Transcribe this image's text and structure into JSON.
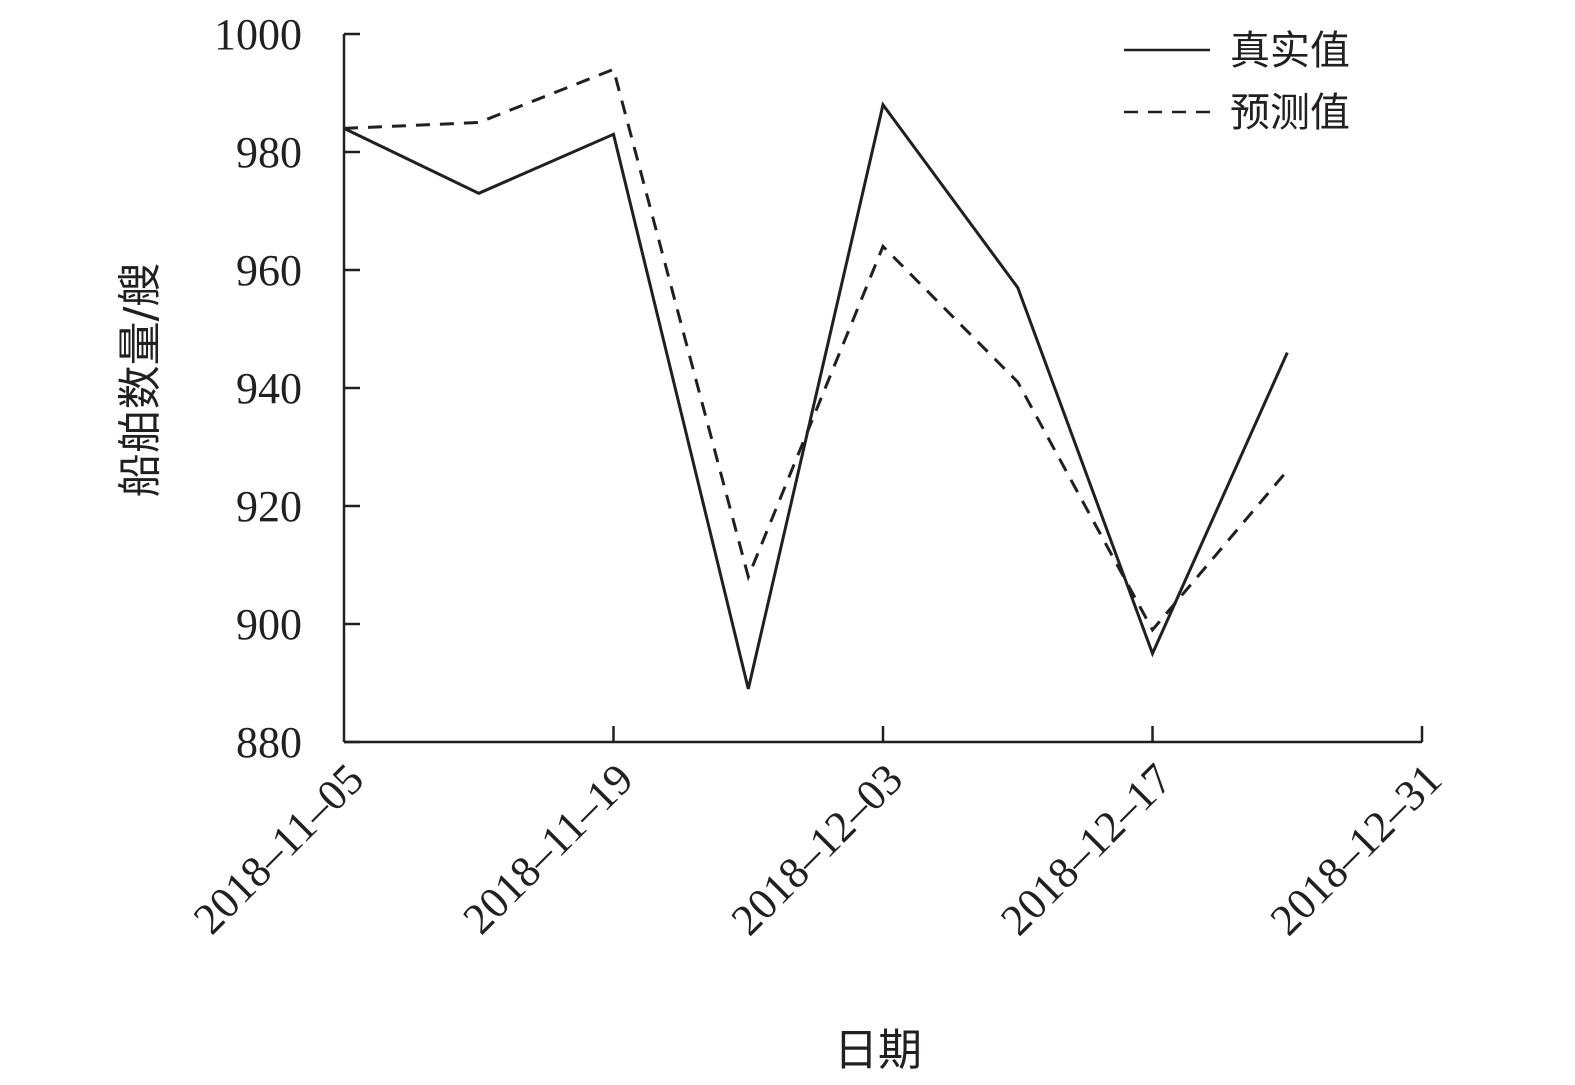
{
  "chart_data": {
    "type": "line",
    "xlabel": "日期",
    "ylabel": "船舶数量/艘",
    "ylim": [
      880,
      1000
    ],
    "yticks": [
      880,
      900,
      920,
      940,
      960,
      980,
      1000
    ],
    "x_tick_labels": [
      "2018–11–05",
      "2018–11–19",
      "2018–12–03",
      "2018–12–17",
      "2018–12–31"
    ],
    "x": [
      "2018-11-05",
      "2018-11-12",
      "2018-11-19",
      "2018-11-26",
      "2018-12-03",
      "2018-12-10",
      "2018-12-17",
      "2018-12-24"
    ],
    "xlim": [
      "2018-11-05",
      "2018-12-31"
    ],
    "grid": false,
    "legend_position": "top-right",
    "series": [
      {
        "name": "真实值",
        "style": "solid",
        "color": "#231f20",
        "values": [
          984,
          973,
          983,
          889,
          988,
          957,
          895,
          946
        ]
      },
      {
        "name": "预测值",
        "style": "dashed",
        "color": "#231f20",
        "values": [
          984,
          985,
          994,
          908,
          964,
          941,
          899,
          926
        ]
      }
    ]
  }
}
